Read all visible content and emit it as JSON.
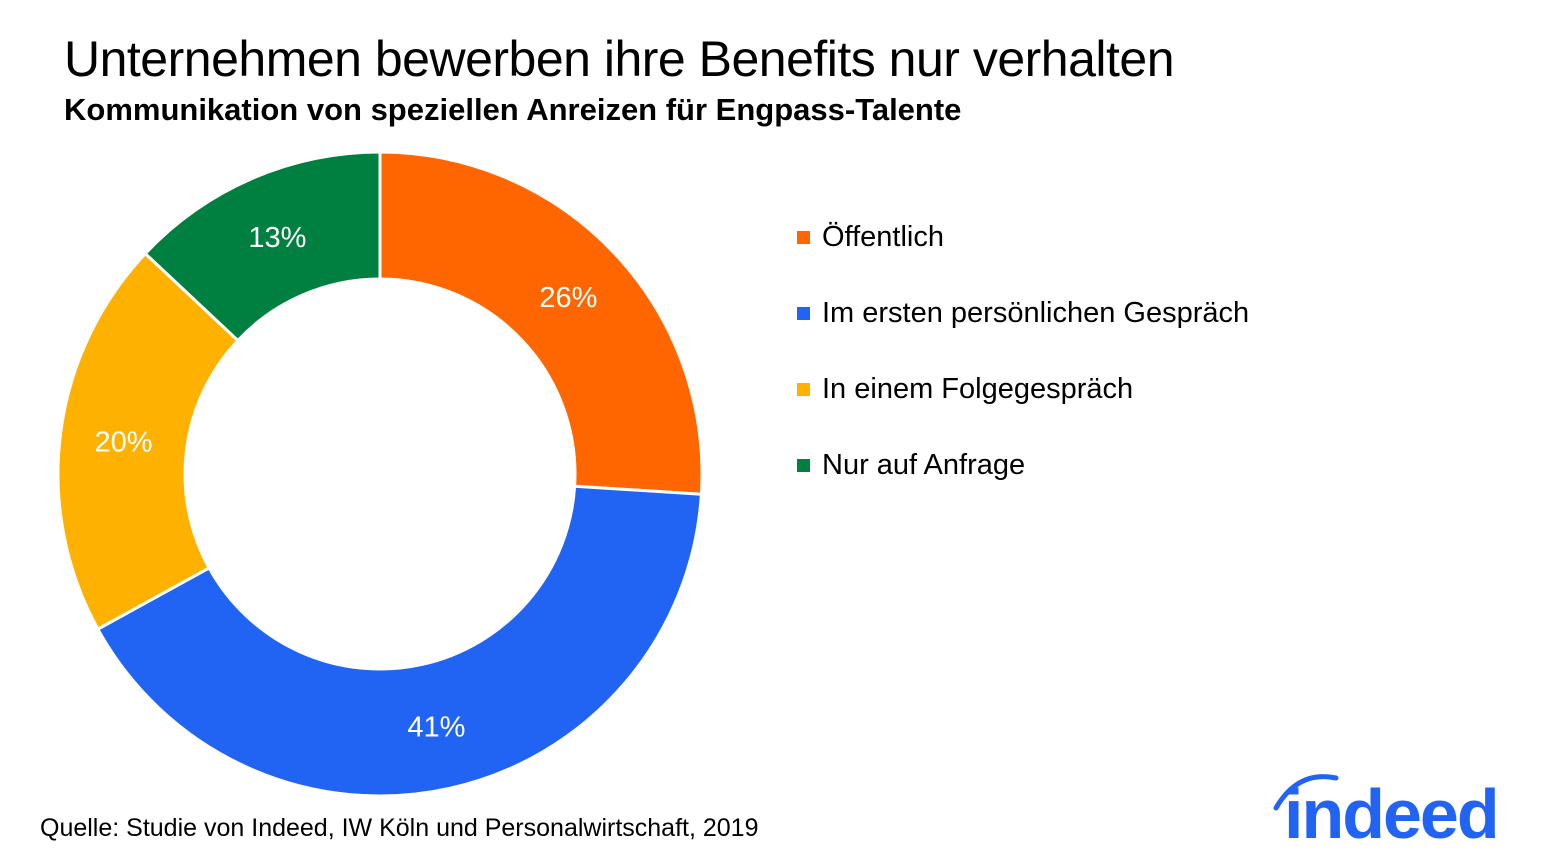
{
  "chart_data": {
    "type": "pie",
    "variant": "donut",
    "title": "Unternehmen bewerben ihre Benefits nur verhalten",
    "subtitle": "Kommunikation von speziellen Anreizen für Engpass-Talente",
    "categories": [
      "Öffentlich",
      "Im ersten persönlichen Gespräch",
      "In einem Folgegespräch",
      "Nur auf Anfrage"
    ],
    "values": [
      26,
      41,
      20,
      13
    ],
    "data_labels": [
      "26%",
      "41%",
      "20%",
      "13%"
    ],
    "colors": [
      "#FF6600",
      "#2164F3",
      "#FFB100",
      "#008040"
    ],
    "legend_position": "right",
    "start_angle": "top, clockwise"
  },
  "source": "Quelle: Studie von Indeed, IW Köln und Personalwirtschaft, 2019",
  "logo": {
    "text": "indeed",
    "color": "#2164F3"
  }
}
